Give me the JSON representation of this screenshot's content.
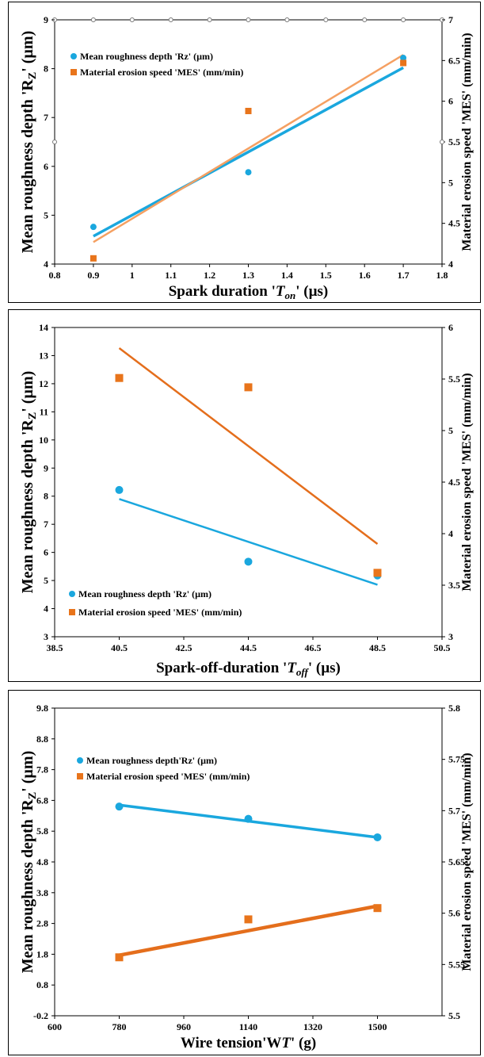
{
  "colors": {
    "rz": "#1aa7de",
    "mes": "#e8741b",
    "fit_mes_1": "#f5a062",
    "fit_mes_2": "#e46e1c"
  },
  "chart_data": [
    {
      "type": "scatter",
      "xlabel": {
        "main": "Spark duration '",
        "italic": "T",
        "sub": "on",
        "end": "' (µs)"
      },
      "ylabel": {
        "main": "Mean roughness depth 'R",
        "sub": "Z",
        "end": "' (µm)"
      },
      "y2label": "Material erosion speed 'MES' (mm/min)",
      "xlim": [
        0.8,
        1.8
      ],
      "xticks": [
        "0.8",
        "0.9",
        "1",
        "1.1",
        "1.2",
        "1.3",
        "1.4",
        "1.5",
        "1.6",
        "1.7",
        "1.8"
      ],
      "ylim": [
        4,
        9
      ],
      "yticks": [
        "4",
        "5",
        "6",
        "7",
        "8",
        "9"
      ],
      "y2lim": [
        4,
        7
      ],
      "y2ticks": [
        "4",
        "4.5",
        "5",
        "5.5",
        "6",
        "6.5",
        "7"
      ],
      "grid": false,
      "legend_position": "top-left",
      "series": [
        {
          "name": "Mean roughness depth 'Rz' (µm)",
          "axis": "left",
          "marker": "circle",
          "x": [
            0.9,
            1.3,
            1.7
          ],
          "y": [
            4.76,
            5.88,
            8.22
          ]
        },
        {
          "name": "Material erosion speed 'MES' (mm/min)",
          "axis": "right",
          "marker": "square",
          "x": [
            0.9,
            1.3,
            1.7
          ],
          "y": [
            4.07,
            5.88,
            6.47
          ]
        }
      ],
      "trendlines": [
        {
          "series": 0,
          "x": [
            0.9,
            1.7
          ],
          "y": [
            4.57,
            8.02
          ]
        },
        {
          "series": 1,
          "x": [
            0.9,
            1.7
          ],
          "y": [
            4.27,
            6.57
          ]
        }
      ]
    },
    {
      "type": "scatter",
      "xlabel": {
        "main": "Spark-off-duration '",
        "italic": "T",
        "sub": "off",
        "end": "' (µs)"
      },
      "ylabel": {
        "main": "Mean roughness depth 'R",
        "sub": "Z",
        "end": "' (µm)"
      },
      "y2label": "Material erosion speed 'MES' (mm/min)",
      "xlim": [
        38.5,
        50.5
      ],
      "xticks": [
        "38.5",
        "40.5",
        "42.5",
        "44.5",
        "46.5",
        "48.5",
        "50.5"
      ],
      "ylim": [
        3,
        14
      ],
      "yticks": [
        "3",
        "4",
        "5",
        "6",
        "7",
        "8",
        "9",
        "10",
        "11",
        "12",
        "13",
        "14"
      ],
      "y2lim": [
        3,
        6
      ],
      "y2ticks": [
        "3",
        "3.5",
        "4",
        "4.5",
        "5",
        "5.5",
        "6"
      ],
      "grid": false,
      "legend_position": "bottom-left",
      "series": [
        {
          "name": "Mean roughness depth 'Rz' (µm)",
          "axis": "left",
          "marker": "circle",
          "x": [
            40.5,
            44.5,
            48.5
          ],
          "y": [
            8.22,
            5.67,
            5.18
          ]
        },
        {
          "name": "Material erosion speed 'MES' (mm/min)",
          "axis": "right",
          "marker": "square",
          "x": [
            40.5,
            44.5,
            48.5
          ],
          "y": [
            5.51,
            5.42,
            3.62
          ]
        }
      ],
      "trendlines": [
        {
          "series": 0,
          "x": [
            40.5,
            48.5
          ],
          "y": [
            7.9,
            4.85
          ]
        },
        {
          "series": 1,
          "x": [
            40.5,
            48.5
          ],
          "y": [
            5.8,
            3.9
          ]
        }
      ]
    },
    {
      "type": "scatter",
      "xlabel": {
        "main": "Wire tension'W",
        "italic": "T",
        "sub": "",
        "end": "' (g)",
        "italic_sub": true
      },
      "ylabel": {
        "main": "Mean roughness depth 'R",
        "sub": "Z",
        "end": "' (µm)"
      },
      "y2label": "Material erosion speed 'MES' (mm/min)",
      "xlim": [
        600,
        1680
      ],
      "xticks": [
        "600",
        "780",
        "960",
        "1140",
        "1320",
        "1500"
      ],
      "ylim": [
        -0.2,
        9.8
      ],
      "yticks": [
        "-0.2",
        "0.8",
        "1.8",
        "2.8",
        "3.8",
        "4.8",
        "5.8",
        "6.8",
        "7.8",
        "8.8",
        "9.8"
      ],
      "y2lim": [
        5.5,
        5.8
      ],
      "y2ticks": [
        "5.5",
        "5.55",
        "5.6",
        "5.65",
        "5.7",
        "5.75",
        "5.8"
      ],
      "grid": false,
      "legend_position": "top-left",
      "series": [
        {
          "name": "Mean roughness depth'Rz' (µm)",
          "axis": "left",
          "marker": "circle",
          "x": [
            780,
            1140,
            1500
          ],
          "y": [
            6.6,
            6.2,
            5.6
          ]
        },
        {
          "name": "Material erosion speed 'MES' (mm/min)",
          "axis": "right",
          "marker": "square",
          "x": [
            780,
            1140,
            1500
          ],
          "y": [
            5.557,
            5.594,
            5.605
          ]
        }
      ],
      "trendlines": [
        {
          "series": 0,
          "x": [
            780,
            1500
          ],
          "y": [
            6.65,
            5.6
          ]
        },
        {
          "series": 1,
          "x": [
            780,
            1500
          ],
          "y": [
            5.559,
            5.607
          ]
        }
      ]
    }
  ]
}
